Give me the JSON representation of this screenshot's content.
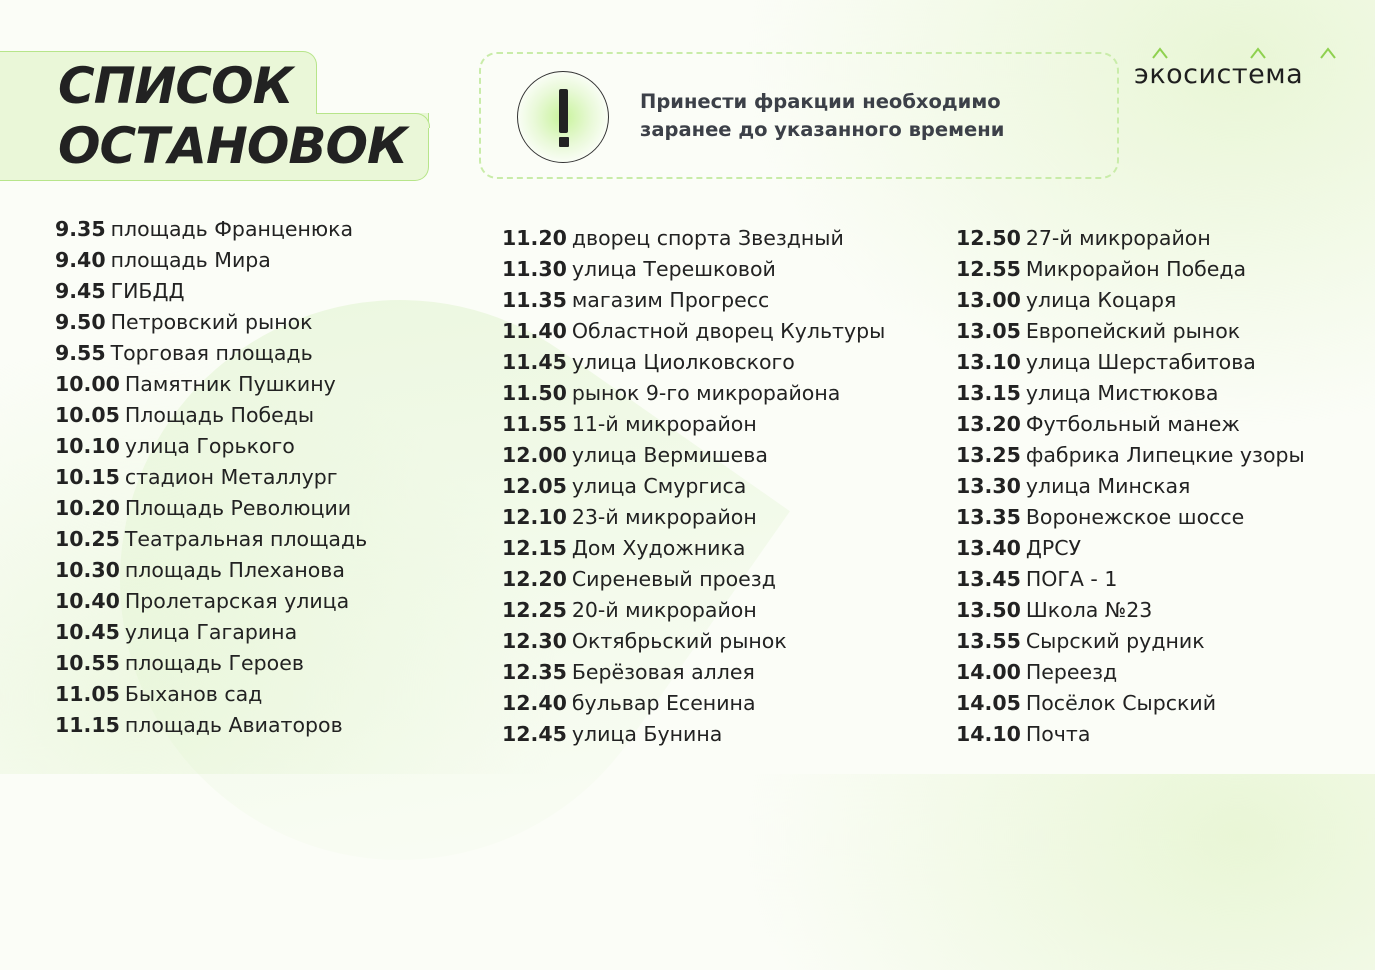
{
  "title": {
    "line1": "СПИСОК",
    "line2": "ОСТАНОВОК"
  },
  "notice": {
    "line1": "Принести фракции необходимо",
    "line2": "заранее до указанного времени",
    "icon": "exclamation-icon"
  },
  "logo": {
    "text": "экосистема"
  },
  "colors": {
    "accent_green": "#b7e58a",
    "tab_fill": "#eaf7d8"
  },
  "stops": [
    [
      {
        "time": "9.35",
        "name": "площадь Франценюка"
      },
      {
        "time": "9.40",
        "name": "площадь Мира"
      },
      {
        "time": "9.45",
        "name": "ГИБДД"
      },
      {
        "time": "9.50",
        "name": "Петровский рынок"
      },
      {
        "time": "9.55",
        "name": "Торговая площадь"
      },
      {
        "time": "10.00",
        "name": "Памятник Пушкину"
      },
      {
        "time": "10.05",
        "name": "Площадь Победы"
      },
      {
        "time": "10.10",
        "name": "улица Горького"
      },
      {
        "time": "10.15",
        "name": "стадион Металлург"
      },
      {
        "time": "10.20",
        "name": "Площадь Революции"
      },
      {
        "time": "10.25",
        "name": "Театральная площадь"
      },
      {
        "time": "10.30",
        "name": "площадь Плеханова"
      },
      {
        "time": "10.40",
        "name": "Пролетарская улица"
      },
      {
        "time": "10.45",
        "name": "улица Гагарина"
      },
      {
        "time": "10.55",
        "name": "площадь Героев"
      },
      {
        "time": "11.05",
        "name": "Быханов сад"
      },
      {
        "time": "11.15",
        "name": "площадь Авиаторов"
      }
    ],
    [
      {
        "time": "11.20",
        "name": "дворец спорта Звездный"
      },
      {
        "time": "11.30",
        "name": "улица Терешковой"
      },
      {
        "time": "11.35",
        "name": "магазим Прогресс"
      },
      {
        "time": "11.40",
        "name": "Областной дворец Культуры"
      },
      {
        "time": "11.45",
        "name": "улица Циолковского"
      },
      {
        "time": "11.50",
        "name": "рынок 9-го микрорайона"
      },
      {
        "time": "11.55",
        "name": "11-й микрорайон"
      },
      {
        "time": "12.00",
        "name": "улица Вермишева"
      },
      {
        "time": "12.05",
        "name": "улица Смургиса"
      },
      {
        "time": "12.10",
        "name": "23-й микрорайон"
      },
      {
        "time": "12.15",
        "name": "Дом Художника"
      },
      {
        "time": "12.20",
        "name": "Сиреневый проезд"
      },
      {
        "time": "12.25",
        "name": "20-й микрорайон"
      },
      {
        "time": "12.30",
        "name": "Октябрьский рынок"
      },
      {
        "time": "12.35",
        "name": "Берёзовая аллея"
      },
      {
        "time": "12.40",
        "name": "бульвар Есенина"
      },
      {
        "time": "12.45",
        "name": "улица Бунина"
      }
    ],
    [
      {
        "time": "12.50",
        "name": "27-й микрорайон"
      },
      {
        "time": "12.55",
        "name": "Микрорайон Победа"
      },
      {
        "time": "13.00",
        "name": "улица Коцаря"
      },
      {
        "time": "13.05",
        "name": "Европейский рынок"
      },
      {
        "time": "13.10",
        "name": "улица Шерстабитова"
      },
      {
        "time": "13.15",
        "name": "улица Мистюкова"
      },
      {
        "time": "13.20",
        "name": "Футбольный манеж"
      },
      {
        "time": "13.25",
        "name": "фабрика Липецкие узоры"
      },
      {
        "time": "13.30",
        "name": "улица Минская"
      },
      {
        "time": "13.35",
        "name": "Воронежское шоссе"
      },
      {
        "time": "13.40",
        "name": "ДРСУ"
      },
      {
        "time": "13.45",
        "name": "ПОГА - 1"
      },
      {
        "time": "13.50",
        "name": "Школа №23"
      },
      {
        "time": "13.55",
        "name": "Сырский рудник"
      },
      {
        "time": "14.00",
        "name": "Переезд"
      },
      {
        "time": "14.05",
        "name": "Посёлок Сырский"
      },
      {
        "time": "14.10",
        "name": "Почта"
      }
    ]
  ]
}
